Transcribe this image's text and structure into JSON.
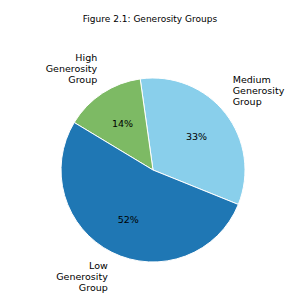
{
  "chart_data": {
    "type": "pie",
    "title": "Figure 2.1: Generosity Groups",
    "categories": [
      "Medium Generosity Group",
      "High Generosity Group",
      "Low Generosity Group"
    ],
    "values": [
      33,
      14,
      52
    ],
    "value_labels": [
      "33%",
      "14%",
      "52%"
    ],
    "colors": [
      "#89cfeb",
      "#7dba64",
      "#1f77b4"
    ],
    "data_labels": true
  }
}
